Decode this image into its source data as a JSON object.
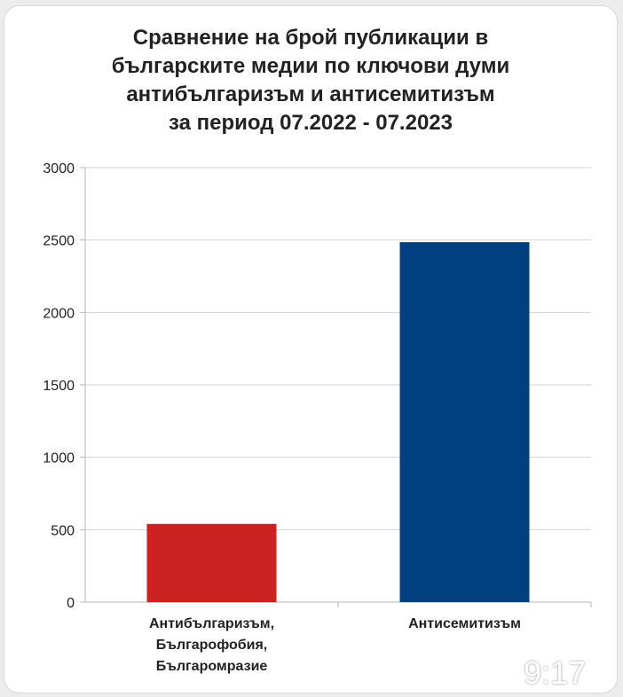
{
  "chart_data": {
    "type": "bar",
    "title": [
      "Сравнение на брой публикации в",
      "българските медии по ключови думи",
      "антибългаризъм и антисемитизъм",
      "за период 07.2022 - 07.2023"
    ],
    "categories": [
      [
        "Антибългаризъм,",
        "Българофобия,",
        "Българомразие"
      ],
      [
        "Антисемитизъм"
      ]
    ],
    "values": [
      540,
      2485
    ],
    "colors": [
      "#cc2222",
      "#003f80"
    ],
    "ylim": [
      0,
      3000
    ],
    "yticks": [
      0,
      500,
      1000,
      1500,
      2000,
      2500,
      3000
    ],
    "grid": true,
    "xlabel": "",
    "ylabel": ""
  },
  "overlay": {
    "clock": "9:17"
  }
}
